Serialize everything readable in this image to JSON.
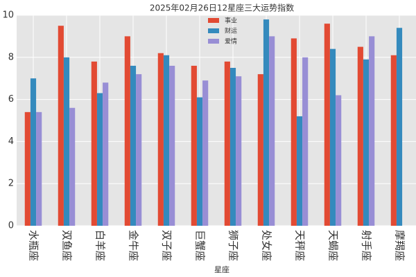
{
  "chart_data": {
    "type": "bar",
    "title": "2025年02月26日12星座三大运势指数",
    "x_label": "星座",
    "categories": [
      "水瓶座",
      "双鱼座",
      "白羊座",
      "金牛座",
      "双子座",
      "巨蟹座",
      "狮子座",
      "处女座",
      "天秤座",
      "天蝎座",
      "射手座",
      "摩羯座"
    ],
    "series": [
      {
        "name": "事业",
        "color": "#E24A33",
        "values": [
          5.4,
          9.5,
          7.8,
          9.0,
          8.2,
          7.6,
          7.8,
          7.2,
          8.9,
          9.6,
          8.5,
          8.1
        ]
      },
      {
        "name": "财运",
        "color": "#348ABD",
        "values": [
          7.0,
          8.0,
          6.3,
          7.6,
          8.1,
          6.1,
          7.5,
          9.8,
          5.2,
          8.4,
          7.9,
          9.4
        ]
      },
      {
        "name": "爱情",
        "color": "#988ED5",
        "values": [
          5.4,
          5.6,
          6.8,
          7.2,
          7.6,
          6.9,
          7.1,
          9.0,
          8.0,
          6.2,
          9.0,
          null
        ]
      }
    ],
    "ylim": [
      0,
      10
    ],
    "yticks": [
      0,
      2,
      4,
      6,
      8,
      10
    ],
    "grid": true,
    "legend": "upper center"
  }
}
